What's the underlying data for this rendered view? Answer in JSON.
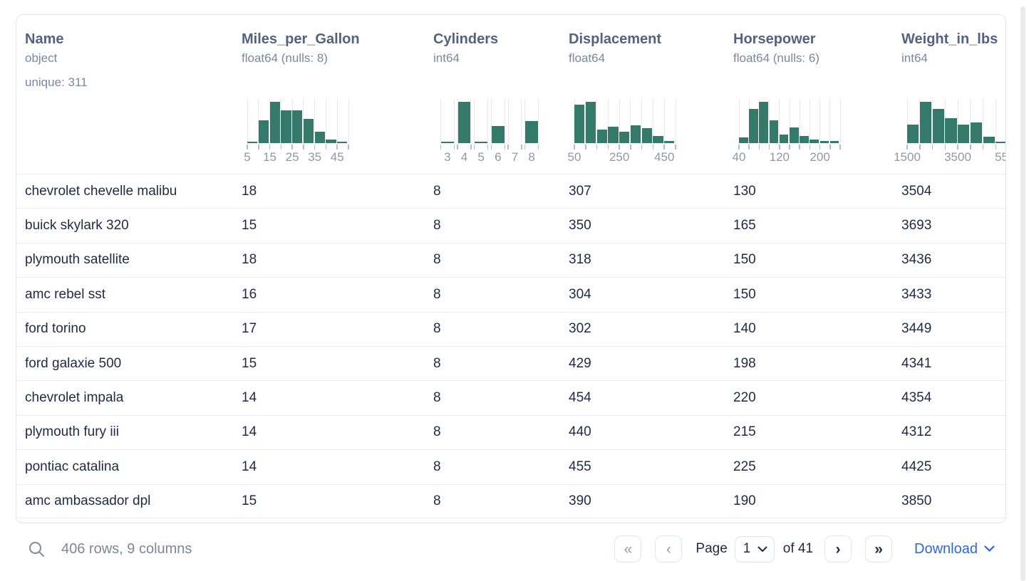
{
  "table": {
    "columns": [
      {
        "name": "Name",
        "dtype": "object",
        "extra": "unique: 311",
        "hist": null
      },
      {
        "name": "Miles_per_Gallon",
        "dtype": "float64 (nulls: 8)",
        "hist": {
          "type": "continuous",
          "heights": [
            3,
            55,
            100,
            79,
            79,
            58,
            28,
            9,
            3
          ],
          "ticks": 10,
          "labels": [
            {
              "text": "5",
              "at": 0
            },
            {
              "text": "15",
              "at": 2
            },
            {
              "text": "25",
              "at": 4
            },
            {
              "text": "35",
              "at": 6
            },
            {
              "text": "45",
              "at": 8
            }
          ]
        }
      },
      {
        "name": "Cylinders",
        "dtype": "int64",
        "hist": {
          "type": "discrete",
          "heights": [
            3,
            100,
            3,
            41,
            0,
            53
          ],
          "labels": [
            "3",
            "4",
            "5",
            "6",
            "7",
            "8"
          ]
        }
      },
      {
        "name": "Displacement",
        "dtype": "float64",
        "hist": {
          "type": "continuous",
          "heights": [
            93,
            100,
            33,
            40,
            28,
            43,
            37,
            18,
            5
          ],
          "ticks": 10,
          "labels": [
            {
              "text": "50",
              "at": 0
            },
            {
              "text": "250",
              "at": 4
            },
            {
              "text": "450",
              "at": 8
            }
          ]
        }
      },
      {
        "name": "Horsepower",
        "dtype": "float64 (nulls: 6)",
        "hist": {
          "type": "continuous",
          "heights": [
            13,
            82,
            100,
            56,
            20,
            38,
            18,
            8,
            5,
            5
          ],
          "ticks": 11,
          "labels": [
            {
              "text": "40",
              "at": 0
            },
            {
              "text": "120",
              "at": 4
            },
            {
              "text": "200",
              "at": 8
            }
          ]
        }
      },
      {
        "name": "Weight_in_lbs",
        "dtype": "int64",
        "hist": {
          "type": "continuous",
          "heights": [
            45,
            100,
            83,
            60,
            45,
            50,
            15,
            3
          ],
          "ticks": 9,
          "labels": [
            {
              "text": "1500",
              "at": 0
            },
            {
              "text": "3500",
              "at": 4
            },
            {
              "text": "5500",
              "at": 8
            }
          ]
        }
      }
    ],
    "rows": [
      [
        "chevrolet chevelle malibu",
        "18",
        "8",
        "307",
        "130",
        "3504"
      ],
      [
        "buick skylark 320",
        "15",
        "8",
        "350",
        "165",
        "3693"
      ],
      [
        "plymouth satellite",
        "18",
        "8",
        "318",
        "150",
        "3436"
      ],
      [
        "amc rebel sst",
        "16",
        "8",
        "304",
        "150",
        "3433"
      ],
      [
        "ford torino",
        "17",
        "8",
        "302",
        "140",
        "3449"
      ],
      [
        "ford galaxie 500",
        "15",
        "8",
        "429",
        "198",
        "4341"
      ],
      [
        "chevrolet impala",
        "14",
        "8",
        "454",
        "220",
        "4354"
      ],
      [
        "plymouth fury iii",
        "14",
        "8",
        "440",
        "215",
        "4312"
      ],
      [
        "pontiac catalina",
        "14",
        "8",
        "455",
        "225",
        "4425"
      ],
      [
        "amc ambassador dpl",
        "15",
        "8",
        "390",
        "190",
        "3850"
      ]
    ]
  },
  "footer": {
    "summary": "406 rows, 9 columns",
    "first_glyph": "«",
    "prev_glyph": "‹",
    "next_glyph": "›",
    "last_glyph": "»",
    "page_label": "Page",
    "page_value": "1",
    "of_label": "of 41",
    "download_label": "Download"
  },
  "colors": {
    "bar": "#35796a",
    "header_title": "#54627f",
    "row_text": "#1e2a45",
    "accent_blue": "#2c67de"
  }
}
